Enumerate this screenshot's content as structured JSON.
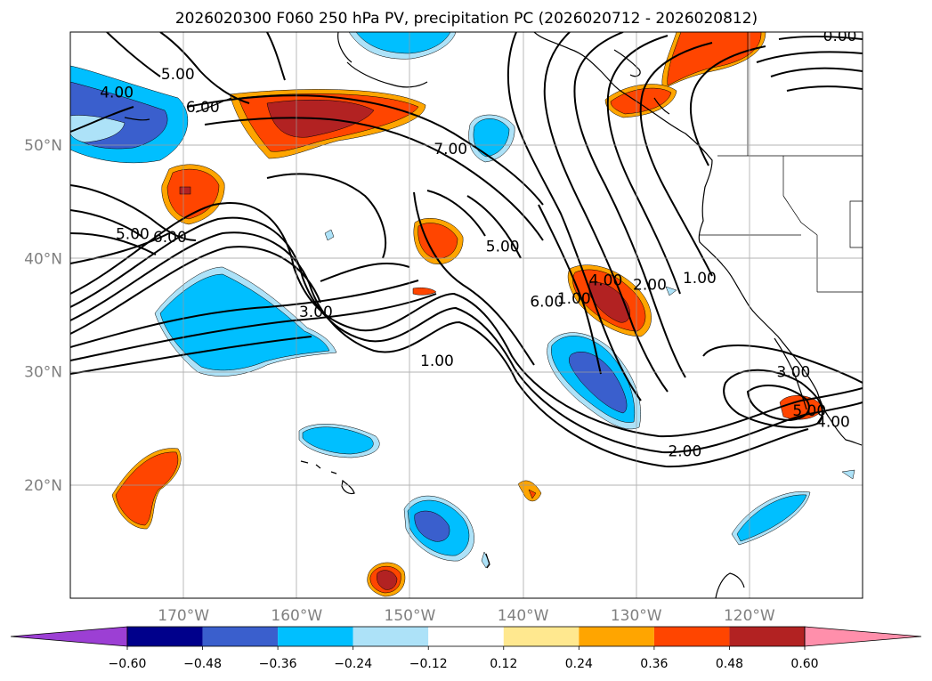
{
  "chart_data": {
    "type": "map",
    "title": "2026020300 F060 250 hPa PV, precipitation PC (2026020712 - 2026020812)",
    "map_extent": {
      "lon": [
        -180,
        -110
      ],
      "lat": [
        10,
        60
      ]
    },
    "x_ticks": [
      {
        "value": -170,
        "label": "170°W"
      },
      {
        "value": -160,
        "label": "160°W"
      },
      {
        "value": -150,
        "label": "150°W"
      },
      {
        "value": -140,
        "label": "140°W"
      },
      {
        "value": -130,
        "label": "130°W"
      },
      {
        "value": -120,
        "label": "120°W"
      }
    ],
    "y_ticks": [
      {
        "value": 20,
        "label": "20°N"
      },
      {
        "value": 30,
        "label": "30°N"
      },
      {
        "value": 40,
        "label": "40°N"
      },
      {
        "value": 50,
        "label": "50°N"
      }
    ],
    "grid": true,
    "colorbar": {
      "orientation": "horizontal",
      "extend": "both",
      "levels": [
        -0.6,
        -0.48,
        -0.36,
        -0.24,
        -0.12,
        0.12,
        0.24,
        0.36,
        0.48,
        0.6
      ],
      "tick_labels": [
        "−0.60",
        "−0.48",
        "−0.36",
        "−0.24",
        "−0.12",
        "0.12",
        "0.24",
        "0.36",
        "0.48",
        "0.60"
      ],
      "colors": [
        "#9c3fd4",
        "#00008b",
        "#3a5fcd",
        "#00bfff",
        "#ade2f8",
        "#ffffff",
        "#ffe88f",
        "#ffa500",
        "#ff4500",
        "#b22222",
        "#ff8fab"
      ]
    },
    "contours_pv": {
      "label_values": [
        "1.00",
        "2.00",
        "3.00",
        "4.00",
        "5.00",
        "6.00",
        "7.00"
      ],
      "on_map_labels": [
        {
          "text": "5.00",
          "lon": -170.5,
          "lat": 56.3
        },
        {
          "text": "4.00",
          "lon": -175.9,
          "lat": 54.7
        },
        {
          "text": "6.00",
          "lon": -168.3,
          "lat": 53.4
        },
        {
          "text": "7.00",
          "lon": -146.4,
          "lat": 49.7
        },
        {
          "text": "5.00",
          "lon": -174.5,
          "lat": 42.2
        },
        {
          "text": "6.00",
          "lon": -171.2,
          "lat": 41.9
        },
        {
          "text": "3.00",
          "lon": -158.3,
          "lat": 35.3
        },
        {
          "text": "5.00",
          "lon": -141.8,
          "lat": 41.1
        },
        {
          "text": "6.00",
          "lon": -137.9,
          "lat": 36.2
        },
        {
          "text": "1.00",
          "lon": -135.5,
          "lat": 36.5
        },
        {
          "text": "4.00",
          "lon": -132.7,
          "lat": 38.1
        },
        {
          "text": "2.00",
          "lon": -128.8,
          "lat": 37.7
        },
        {
          "text": "1.00",
          "lon": -124.4,
          "lat": 38.3
        },
        {
          "text": "1.00",
          "lon": -147.6,
          "lat": 31.0
        },
        {
          "text": "3.00",
          "lon": -116.1,
          "lat": 30.0
        },
        {
          "text": "5.00",
          "lon": -114.7,
          "lat": 26.6
        },
        {
          "text": "4.00",
          "lon": -112.6,
          "lat": 25.6
        },
        {
          "text": "2.00",
          "lon": -125.7,
          "lat": 23.0
        },
        {
          "text": "0.00",
          "lon": -112.0,
          "lat": 59.7
        }
      ]
    },
    "shaded_anomalies": [
      {
        "lon": -175.5,
        "lat": 51.3,
        "value": -0.4
      },
      {
        "lon": -159.5,
        "lat": 52.0,
        "value": 0.4
      },
      {
        "lon": -171.0,
        "lat": 45.8,
        "value": 0.3
      },
      {
        "lon": -148.0,
        "lat": 59.5,
        "value": -0.3
      },
      {
        "lon": -141.0,
        "lat": 50.5,
        "value": -0.3
      },
      {
        "lon": -147.5,
        "lat": 42.3,
        "value": 0.3
      },
      {
        "lon": -133.5,
        "lat": 36.5,
        "value": 0.4
      },
      {
        "lon": -133.0,
        "lat": 30.5,
        "value": -0.4
      },
      {
        "lon": -162.5,
        "lat": 34.0,
        "value": -0.3
      },
      {
        "lon": -151.5,
        "lat": 24.2,
        "value": -0.3
      },
      {
        "lon": -148.0,
        "lat": 16.0,
        "value": -0.4
      },
      {
        "lon": -152.5,
        "lat": 11.5,
        "value": 0.4
      },
      {
        "lon": -173.5,
        "lat": 20.5,
        "value": 0.3
      },
      {
        "lon": -117.5,
        "lat": 16.5,
        "value": -0.3
      },
      {
        "lon": -117.0,
        "lat": 26.5,
        "value": 0.3
      },
      {
        "lon": -125.5,
        "lat": 57.0,
        "value": 0.3
      },
      {
        "lon": -139.5,
        "lat": 19.5,
        "value": 0.24
      }
    ]
  }
}
